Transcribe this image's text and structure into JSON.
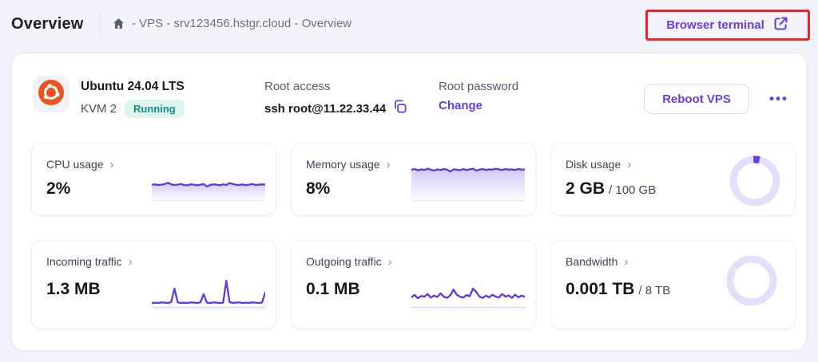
{
  "header": {
    "title": "Overview",
    "breadcrumb": "- VPS - srv123456.hstgr.cloud - Overview",
    "browser_terminal_label": "Browser terminal"
  },
  "server": {
    "os": "Ubuntu 24.04 LTS",
    "plan": "KVM 2",
    "status": "Running",
    "root_access_label": "Root access",
    "root_access_value": "ssh root@11.22.33.44",
    "root_password_label": "Root password",
    "change_label": "Change",
    "reboot_label": "Reboot VPS",
    "more_label": "•••"
  },
  "icons": {
    "chevron": "›"
  },
  "colors": {
    "accent": "#673de6",
    "spark_line": "#6236e3",
    "spark_fill_top": "rgba(103,61,230,0.28)",
    "spark_fill_bottom": "rgba(103,61,230,0.02)",
    "area_baseline": "#e9ebf4",
    "line_baseline": "#d9d3f4",
    "donut_track": "#e3dffb",
    "status_green": "#0e9384",
    "highlight_red": "#e8252c"
  },
  "cards": [
    {
      "label": "CPU usage",
      "value": "2%",
      "suffix": ""
    },
    {
      "label": "Memory usage",
      "value": "8%",
      "suffix": ""
    },
    {
      "label": "Disk usage",
      "value": "2 GB",
      "suffix": "/ 100 GB"
    },
    {
      "label": "Incoming traffic",
      "value": "1.3 MB",
      "suffix": ""
    },
    {
      "label": "Outgoing traffic",
      "value": "0.1 MB",
      "suffix": ""
    },
    {
      "label": "Bandwidth",
      "value": "0.001 TB",
      "suffix": "/ 8 TB"
    }
  ],
  "chart_data": [
    {
      "id": "cpu",
      "type": "area",
      "title": "CPU usage",
      "current_pct": 2,
      "yrange": [
        0,
        1
      ],
      "values": [
        0.46,
        0.47,
        0.45,
        0.46,
        0.48,
        0.52,
        0.47,
        0.45,
        0.46,
        0.48,
        0.45,
        0.44,
        0.47,
        0.46,
        0.44,
        0.46,
        0.48,
        0.4,
        0.45,
        0.47,
        0.46,
        0.44,
        0.47,
        0.45,
        0.51,
        0.48,
        0.46,
        0.45,
        0.47,
        0.44,
        0.46,
        0.48,
        0.45,
        0.46,
        0.47,
        0.46
      ]
    },
    {
      "id": "memory",
      "type": "area",
      "title": "Memory usage",
      "current_pct": 8,
      "yrange": [
        0,
        1
      ],
      "values": [
        0.93,
        0.95,
        0.91,
        0.94,
        0.92,
        0.96,
        0.93,
        0.9,
        0.94,
        0.92,
        0.95,
        0.93,
        0.87,
        0.94,
        0.93,
        0.91,
        0.95,
        0.92,
        0.94,
        0.96,
        0.9,
        0.93,
        0.95,
        0.92,
        0.94,
        0.93,
        0.96,
        0.94,
        0.92,
        0.95,
        0.93,
        0.94,
        0.92,
        0.95,
        0.93,
        0.94
      ]
    },
    {
      "id": "disk",
      "type": "donut",
      "title": "Disk usage",
      "used": 2,
      "total": 100,
      "unit": "GB",
      "display_fraction": 0.045
    },
    {
      "id": "incoming",
      "type": "line",
      "title": "Incoming traffic",
      "current": 1.3,
      "unit": "MB",
      "yrange": [
        0,
        1
      ],
      "values": [
        0.1,
        0.11,
        0.1,
        0.12,
        0.11,
        0.1,
        0.13,
        0.55,
        0.12,
        0.1,
        0.11,
        0.1,
        0.12,
        0.11,
        0.1,
        0.12,
        0.38,
        0.11,
        0.1,
        0.12,
        0.11,
        0.1,
        0.11,
        0.8,
        0.13,
        0.1,
        0.11,
        0.12,
        0.1,
        0.11,
        0.1,
        0.12,
        0.11,
        0.1,
        0.11,
        0.42
      ]
    },
    {
      "id": "outgoing",
      "type": "line",
      "title": "Outgoing traffic",
      "current": 0.1,
      "unit": "MB",
      "yrange": [
        0,
        1
      ],
      "values": [
        0.28,
        0.35,
        0.25,
        0.32,
        0.3,
        0.38,
        0.27,
        0.33,
        0.29,
        0.4,
        0.3,
        0.26,
        0.34,
        0.52,
        0.36,
        0.3,
        0.27,
        0.35,
        0.31,
        0.55,
        0.45,
        0.3,
        0.26,
        0.33,
        0.28,
        0.36,
        0.3,
        0.27,
        0.38,
        0.3,
        0.34,
        0.26,
        0.36,
        0.28,
        0.33,
        0.3
      ]
    },
    {
      "id": "bandwidth",
      "type": "donut",
      "title": "Bandwidth",
      "used": 0.001,
      "total": 8,
      "unit": "TB",
      "display_fraction": 0
    }
  ]
}
